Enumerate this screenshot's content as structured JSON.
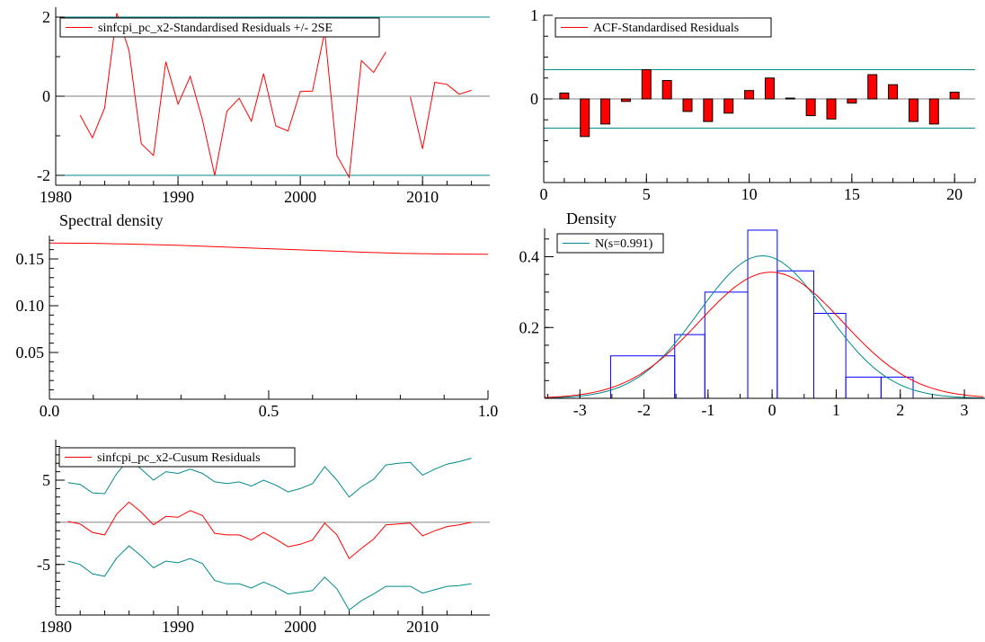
{
  "colors": {
    "residual": "#ff0000",
    "band": "#008b8b",
    "zero_line": "#808080",
    "acf_bar": "#ff0000",
    "hist": "#0000ff",
    "normal_fit": "#008b8b",
    "kernel_density": "#ff0000",
    "axis": "#000000"
  },
  "chart_data": [
    {
      "id": "residuals",
      "type": "line",
      "legend": "sinfcpi_pc_x2-Standardised Residuals +/- 2SE",
      "legend_position": "top-left",
      "xlim": [
        1980,
        2015.5
      ],
      "ylim": [
        -2.25,
        2.25
      ],
      "xticks": [
        1980,
        1990,
        2000,
        2010
      ],
      "yticks": [
        -2,
        0,
        2
      ],
      "bands": [
        2,
        -2
      ],
      "zero_line": 0,
      "series": [
        {
          "segments": [
            {
              "x": [
                1982,
                1983,
                1984,
                1985,
                1986,
                1987,
                1988,
                1989,
                1990,
                1991,
                1992,
                1993,
                1994,
                1995,
                1996,
                1997,
                1998,
                1999,
                2000,
                2001,
                2002,
                2003,
                2004,
                2005,
                2006,
                2007
              ],
              "y": [
                -0.48,
                -1.05,
                -0.3,
                2.1,
                1.15,
                -1.2,
                -1.5,
                0.87,
                -0.2,
                0.5,
                -0.6,
                -2.0,
                -0.38,
                -0.05,
                -0.63,
                0.57,
                -0.75,
                -0.88,
                0.12,
                0.13,
                1.63,
                -1.5,
                -2.05,
                0.9,
                0.6,
                1.12
              ]
            },
            {
              "x": [
                2009,
                2010,
                2011,
                2012,
                2013,
                2014
              ],
              "y": [
                -0.02,
                -1.33,
                0.35,
                0.3,
                0.05,
                0.15
              ]
            }
          ]
        }
      ]
    },
    {
      "id": "acf",
      "type": "bar",
      "legend": "ACF-Standardised Residuals",
      "legend_position": "top-left",
      "xlim": [
        0,
        21
      ],
      "ylim": [
        -1,
        1
      ],
      "xticks": [
        0,
        5,
        10,
        15,
        20
      ],
      "yticks": [
        0,
        1
      ],
      "bands": [
        0.35,
        -0.35
      ],
      "lags": [
        1,
        2,
        3,
        4,
        5,
        6,
        7,
        8,
        9,
        10,
        11,
        12,
        13,
        14,
        15,
        16,
        17,
        18,
        19,
        20
      ],
      "values": [
        0.07,
        -0.45,
        -0.3,
        -0.03,
        0.35,
        0.22,
        -0.15,
        -0.27,
        -0.17,
        0.1,
        0.25,
        0.01,
        -0.2,
        -0.24,
        -0.05,
        0.29,
        0.17,
        -0.27,
        -0.3,
        0.08
      ]
    },
    {
      "id": "spectral",
      "type": "line",
      "title": "Spectral density",
      "xlim": [
        0,
        1
      ],
      "ylim": [
        0,
        0.175
      ],
      "xticks": [
        0.0,
        0.5,
        1.0
      ],
      "xtick_labels": [
        "0.0",
        "0.5",
        "1.0"
      ],
      "yticks": [
        0.05,
        0.1,
        0.15
      ],
      "ytick_labels": [
        "0.05",
        "0.10",
        "0.15"
      ],
      "x": [
        0,
        0.1,
        0.2,
        0.3,
        0.4,
        0.5,
        0.6,
        0.7,
        0.8,
        0.9,
        1.0
      ],
      "y": [
        0.167,
        0.1667,
        0.1658,
        0.1645,
        0.1628,
        0.161,
        0.1592,
        0.1575,
        0.156,
        0.1553,
        0.155
      ]
    },
    {
      "id": "density",
      "type": "area",
      "title": "Density",
      "legend": "N(s=0.991)",
      "legend_position": "top-left",
      "xlim": [
        -3.55,
        3.35
      ],
      "ylim": [
        0,
        0.48
      ],
      "xticks": [
        -3,
        -2,
        -1,
        0,
        1,
        2,
        3
      ],
      "yticks": [
        0.2,
        0.4
      ],
      "ytick_labels": [
        "0.2",
        "0.4"
      ],
      "histogram": {
        "bin_edges": [
          -2.52,
          -1.52,
          -1.05,
          -0.38,
          0.08,
          0.65,
          1.15,
          1.7,
          2.2
        ],
        "heights": [
          0.12,
          0.18,
          0.3,
          0.475,
          0.36,
          0.24,
          0.06,
          0.06
        ],
        "extra_edges": [
          -2.0,
          -0.98,
          0.06,
          1.15
        ]
      },
      "normal_fit": {
        "mean": -0.15,
        "sd": 0.991
      },
      "kernel_density": {
        "mean": -0.02,
        "sd": 1.12
      },
      "curve_range": [
        -3.55,
        3.3
      ]
    },
    {
      "id": "cusum",
      "type": "line",
      "legend": "sinfcpi_pc_x2-Cusum Residuals",
      "legend_position": "top-left",
      "xlim": [
        1980,
        2015.5
      ],
      "ylim": [
        -11,
        9.8
      ],
      "xticks": [
        1980,
        1990,
        2000,
        2010
      ],
      "yticks": [
        -5,
        5
      ],
      "ytick_labels": [
        "-5",
        "5"
      ],
      "zero_line": 0,
      "x": [
        1981,
        1982,
        1983,
        1984,
        1985,
        1986,
        1987,
        1988,
        1989,
        1990,
        1991,
        1992,
        1993,
        1994,
        1995,
        1996,
        1997,
        1998,
        1999,
        2000,
        2001,
        2002,
        2003,
        2004,
        2005,
        2006,
        2007,
        2008,
        2009,
        2010,
        2011,
        2012,
        2013,
        2014
      ],
      "series": [
        {
          "name": "cusum",
          "values": [
            0.1,
            -0.2,
            -1.2,
            -1.5,
            1.0,
            2.4,
            1.2,
            -0.3,
            0.7,
            0.6,
            1.4,
            0.8,
            -1.3,
            -1.5,
            -1.5,
            -2.1,
            -1.2,
            -2.0,
            -2.9,
            -2.6,
            -2.1,
            -0.1,
            -1.5,
            -4.3,
            -3.1,
            -2.0,
            -0.3,
            -0.2,
            -0.1,
            -1.6,
            -1.0,
            -0.5,
            -0.3,
            0.0
          ]
        },
        {
          "name": "upper",
          "values": [
            4.7,
            4.5,
            3.5,
            3.4,
            5.8,
            7.5,
            6.3,
            5.0,
            6.0,
            5.8,
            6.3,
            5.8,
            4.8,
            4.6,
            4.8,
            4.3,
            5.0,
            4.4,
            3.6,
            4.0,
            4.6,
            6.6,
            5.0,
            3.0,
            4.2,
            5.1,
            6.8,
            7.0,
            7.1,
            5.6,
            6.3,
            6.9,
            7.2,
            7.6
          ]
        },
        {
          "name": "lower",
          "values": [
            -4.6,
            -5.0,
            -6.1,
            -6.4,
            -4.2,
            -2.8,
            -4.0,
            -5.4,
            -4.6,
            -4.8,
            -4.3,
            -4.9,
            -6.9,
            -7.3,
            -7.3,
            -7.8,
            -7.1,
            -7.7,
            -8.5,
            -8.3,
            -8.1,
            -6.5,
            -7.9,
            -10.4,
            -9.3,
            -8.5,
            -7.6,
            -7.6,
            -7.6,
            -8.4,
            -8.0,
            -7.6,
            -7.5,
            -7.3
          ]
        }
      ]
    }
  ]
}
